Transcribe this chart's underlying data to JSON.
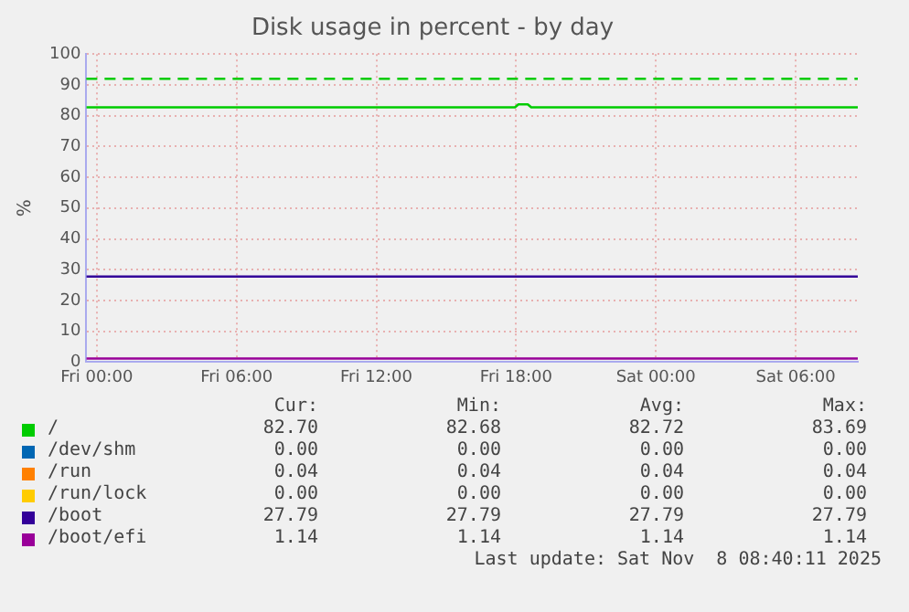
{
  "chart_data": {
    "type": "line",
    "title": "Disk usage in percent - by day",
    "ylabel": "%",
    "x": [
      "2025-11-06T23:33",
      "2025-11-08T08:40"
    ],
    "xlim": [
      "2025-11-06T23:33",
      "2025-11-08T08:40"
    ],
    "xticks": [
      {
        "value": "2025-11-07T00:00",
        "label": "Fri 00:00"
      },
      {
        "value": "2025-11-07T06:00",
        "label": "Fri 06:00"
      },
      {
        "value": "2025-11-07T12:00",
        "label": "Fri 12:00"
      },
      {
        "value": "2025-11-07T18:00",
        "label": "Fri 18:00"
      },
      {
        "value": "2025-11-08T00:00",
        "label": "Sat 00:00"
      },
      {
        "value": "2025-11-08T06:00",
        "label": "Sat 06:00"
      }
    ],
    "ylim": [
      0,
      100
    ],
    "yticks": [
      0,
      10,
      20,
      30,
      40,
      50,
      60,
      70,
      80,
      90,
      100
    ],
    "grid": true,
    "legend": "bottom",
    "marker": "none",
    "line_style": "solid",
    "series": [
      {
        "name": "/",
        "color": "#00cc00",
        "x": [
          "2025-11-06T23:33",
          "2025-11-07T17:57",
          "2025-11-07T18:06",
          "2025-11-07T18:30",
          "2025-11-07T18:39",
          "2025-11-08T08:40"
        ],
        "values": [
          82.7,
          82.7,
          83.69,
          83.69,
          82.7,
          82.7
        ]
      },
      {
        "name": "/dev/shm",
        "color": "#0066b3",
        "values": [
          null,
          null
        ]
      },
      {
        "name": "/run",
        "color": "#ff8000",
        "values": [
          null,
          null
        ]
      },
      {
        "name": "/run/lock",
        "color": "#ffcc00",
        "values": [
          null,
          null
        ]
      },
      {
        "name": "/boot",
        "color": "#330099",
        "values": [
          27.79,
          27.79
        ]
      },
      {
        "name": "/boot/efi",
        "color": "#990099",
        "values": [
          1.14,
          1.14
        ]
      }
    ],
    "ref_lines": [
      {
        "axis": "y",
        "value": 92,
        "color": "#00cc00",
        "line_style": "dashed"
      }
    ],
    "annotations": [
      "Cur:",
      "Min:",
      "Avg:",
      "Max:",
      "82.70",
      "82.68",
      "82.72",
      "83.69",
      "0.00",
      "0.00",
      "0.00",
      "0.00",
      "0.04",
      "0.04",
      "0.04",
      "0.04",
      "0.00",
      "0.00",
      "0.00",
      "0.00",
      "27.79",
      "27.79",
      "27.79",
      "27.79",
      "1.14",
      "1.14",
      "1.14",
      "1.14",
      "Last update: Sat Nov  8 08:40:11 2025"
    ]
  }
}
